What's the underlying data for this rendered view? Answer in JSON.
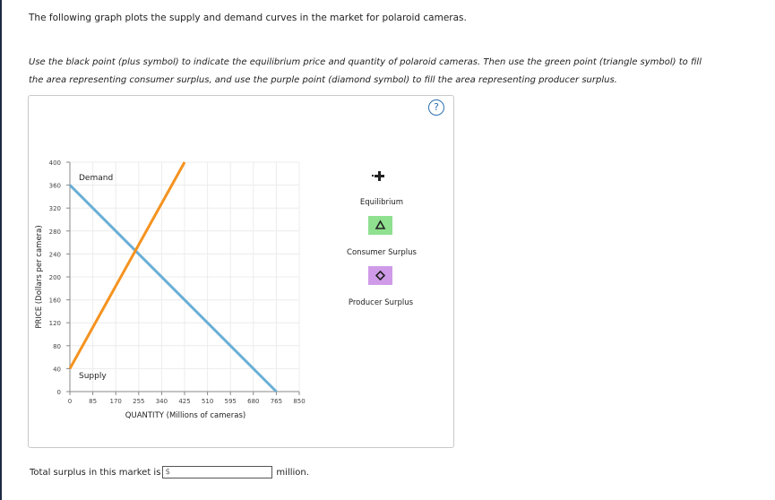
{
  "intro_text": "The following graph plots the supply and demand curves in the market for polaroid cameras.",
  "instructions": [
    "Use the black point (plus symbol) to indicate the equilibrium price and quantity of polaroid cameras. Then use the green point (triangle symbol) to fill",
    "the area representing consumer surplus, and use the purple point (diamond symbol) to fill the area representing producer surplus."
  ],
  "help_icon": "?",
  "graph": {
    "y_axis_label": "PRICE (Dollars per camera)",
    "x_axis_label": "QUANTITY (Millions of cameras)",
    "y_ticks": [
      "0",
      "40",
      "80",
      "120",
      "160",
      "200",
      "240",
      "280",
      "320",
      "360",
      "400"
    ],
    "x_ticks": [
      "0",
      "85",
      "170",
      "255",
      "340",
      "425",
      "510",
      "595",
      "680",
      "765",
      "850"
    ],
    "demand_label": "Demand",
    "supply_label": "Supply",
    "demand_color": "#6aaed6",
    "supply_color": "#f5921e"
  },
  "chart_data": {
    "type": "line",
    "xlabel": "QUANTITY (Millions of cameras)",
    "ylabel": "PRICE (Dollars per camera)",
    "xlim": [
      0,
      850
    ],
    "ylim": [
      0,
      400
    ],
    "series": [
      {
        "name": "Demand",
        "x": [
          0,
          765
        ],
        "y": [
          360,
          0
        ]
      },
      {
        "name": "Supply",
        "x": [
          0,
          425
        ],
        "y": [
          40,
          400
        ]
      }
    ]
  },
  "legend": {
    "equilibrium_label": "Equilibrium",
    "consumer_surplus_label": "Consumer Surplus",
    "producer_surplus_label": "Producer Surplus",
    "consumer_color": "#8fe08f",
    "producer_color": "#cf9be8"
  },
  "total": {
    "label": "Total surplus in this market is",
    "placeholder": "$",
    "unit": "million."
  }
}
